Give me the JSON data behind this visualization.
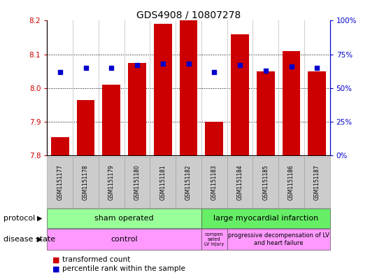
{
  "title": "GDS4908 / 10807278",
  "samples": [
    "GSM1151177",
    "GSM1151178",
    "GSM1151179",
    "GSM1151180",
    "GSM1151181",
    "GSM1151182",
    "GSM1151183",
    "GSM1151184",
    "GSM1151185",
    "GSM1151186",
    "GSM1151187"
  ],
  "bar_values": [
    7.855,
    7.965,
    8.01,
    8.075,
    8.19,
    8.2,
    7.9,
    8.16,
    8.05,
    8.11,
    8.05
  ],
  "percentile_values": [
    0.62,
    0.65,
    0.65,
    0.67,
    0.68,
    0.68,
    0.62,
    0.67,
    0.63,
    0.66,
    0.65
  ],
  "bar_color": "#cc0000",
  "percentile_color": "#0000cc",
  "ymin": 7.8,
  "ymax": 8.2,
  "yticks_left": [
    7.8,
    7.9,
    8.0,
    8.1,
    8.2
  ],
  "right_yticks": [
    0.0,
    0.25,
    0.5,
    0.75,
    1.0
  ],
  "right_yticklabels": [
    "0%",
    "25%",
    "50%",
    "75%",
    "100%"
  ],
  "grid_lines": [
    7.9,
    8.0,
    8.1
  ],
  "protocol_labels": [
    "sham operated",
    "large myocardial infarction"
  ],
  "protocol_color_sham": "#99ff99",
  "protocol_color_large": "#66ee66",
  "disease_color": "#ff99ff",
  "legend_bar_label": "transformed count",
  "legend_pct_label": "percentile rank within the sample",
  "bar_width": 0.7,
  "sham_count": 6,
  "comp_count": 1,
  "prog_count": 4
}
